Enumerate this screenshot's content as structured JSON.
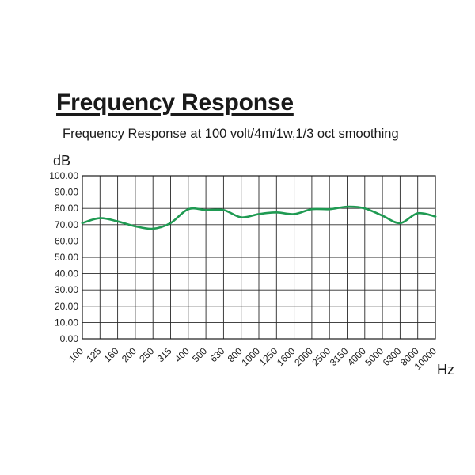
{
  "chart_data": {
    "type": "line",
    "title": "Frequency Response",
    "subtitle": "Frequency Response at 100 volt/4m/1w,1/3 oct smoothing",
    "ylabel": "dB",
    "xlabel": "Hz",
    "ylim": [
      0,
      100
    ],
    "yticks": [
      "0.00",
      "10.00",
      "20.00",
      "30.00",
      "40.00",
      "50.00",
      "60.00",
      "70.00",
      "80.00",
      "90.00",
      "100.00"
    ],
    "x_scale": "log",
    "categories": [
      "100",
      "125",
      "160",
      "200",
      "250",
      "315",
      "400",
      "500",
      "630",
      "800",
      "1000",
      "1250",
      "1600",
      "2000",
      "2500",
      "3150",
      "4000",
      "5000",
      "6300",
      "8000",
      "10000"
    ],
    "grid": true,
    "line_color": "#1f9a52",
    "series": [
      {
        "values": [
          71,
          74,
          72,
          69,
          67.5,
          71,
          79.5,
          79,
          79,
          74.5,
          76.5,
          77.5,
          76.5,
          79.5,
          79.5,
          81,
          80,
          75.5,
          71,
          77,
          75
        ]
      }
    ]
  }
}
